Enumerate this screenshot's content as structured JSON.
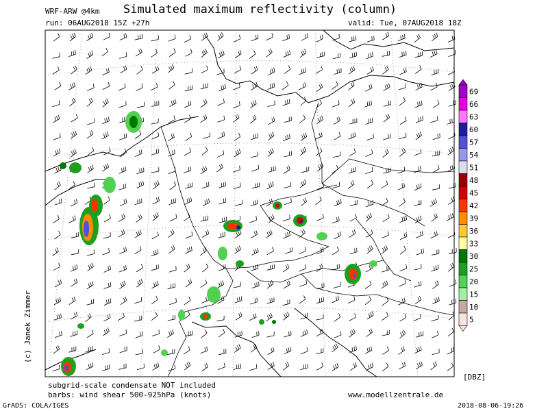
{
  "header": {
    "title": "Simulated maximum reflectivity (column)",
    "model": "WRF-ARW @4km",
    "run": "run: 06AUG2018 15Z +27h",
    "valid": "valid: Tue, 07AUG2018 18Z"
  },
  "footer": {
    "note_condensate": "subgrid-scale condensate NOT included",
    "note_barbs": "barbs: wind shear 500-925hPa (knots)",
    "website": "www.modellzentrale.de",
    "software": "GrADS: COLA/IGES",
    "timestamp": "2018-08-06-19:26"
  },
  "author": "(c) Janek Zimmer",
  "colorbar": {
    "unit": "[DBZ]",
    "levels": [
      "69",
      "66",
      "63",
      "60",
      "57",
      "54",
      "51",
      "48",
      "45",
      "42",
      "39",
      "36",
      "33",
      "30",
      "25",
      "20",
      "15",
      "10",
      "5"
    ],
    "colors": [
      "#a000c8",
      "#e600e6",
      "#ff78ff",
      "#1e1e96",
      "#5050dc",
      "#9696f0",
      "#dcdcf0",
      "#960000",
      "#d20000",
      "#ff3200",
      "#ff8c00",
      "#ffc83c",
      "#ffffa0",
      "#007800",
      "#1ea01e",
      "#50d250",
      "#a0f0a0",
      "#c8a8a0",
      "#f4e4dc"
    ]
  },
  "map": {
    "field": "reflectivity",
    "colors": {
      "coast": "#000000",
      "border": "#000000",
      "grid": "#888888"
    }
  }
}
